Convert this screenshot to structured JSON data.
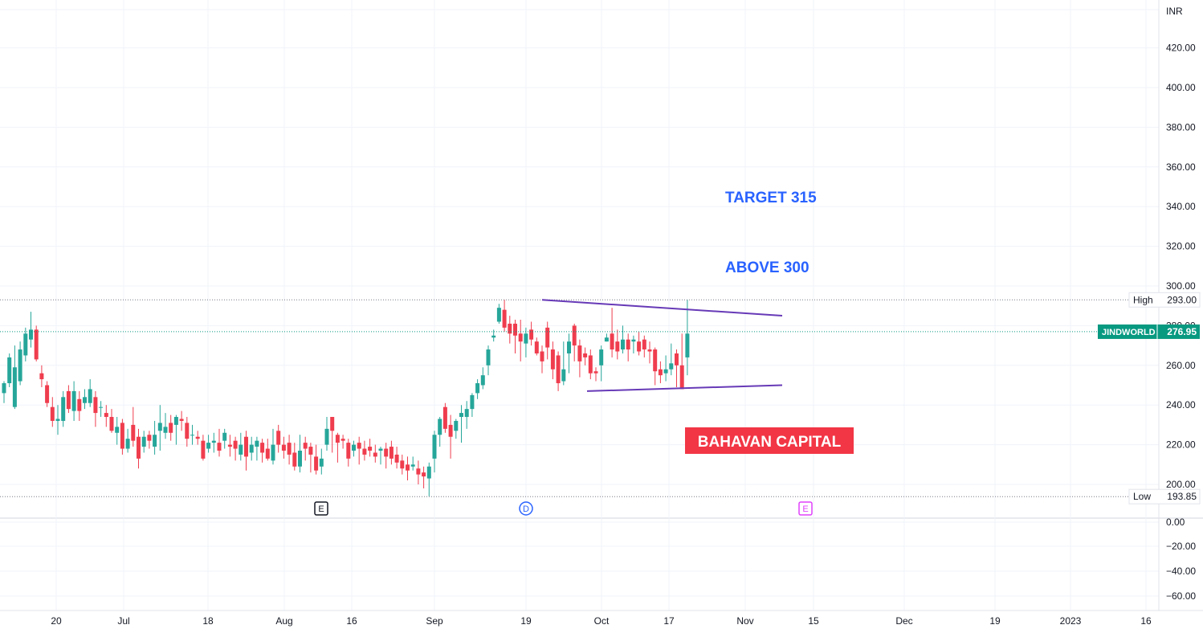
{
  "chart_data": {
    "type": "candlestick",
    "symbol": "JINDWORLD",
    "currency": "INR",
    "last_price": "276.95",
    "high": {
      "label": "High",
      "value": "293.00"
    },
    "low": {
      "label": "Low",
      "value": "193.85"
    },
    "price_ticks": [
      "420.00",
      "400.00",
      "380.00",
      "360.00",
      "340.00",
      "320.00",
      "300.00",
      "280.00",
      "260.00",
      "240.00",
      "220.00",
      "200.00"
    ],
    "volume_ticks": [
      "0.00",
      "−20.00",
      "−40.00",
      "−60.00"
    ],
    "x_tick_labels": [
      "20",
      "Jul",
      "18",
      "Aug",
      "16",
      "Sep",
      "19",
      "Oct",
      "17",
      "Nov",
      "15",
      "Dec",
      "19",
      "2023",
      "16"
    ],
    "colors": {
      "up": "#26a69a",
      "down": "#ef3d4e",
      "trendline": "#673ab7",
      "target_text": "#2962ff",
      "watermark_bg": "#f23645",
      "symbol_tag": "#089981"
    },
    "annotations": [
      {
        "id": "target",
        "text": "TARGET 315"
      },
      {
        "id": "above",
        "text": "ABOVE 300"
      },
      {
        "id": "watermark",
        "text": "BAHAVAN CAPITAL"
      }
    ],
    "event_markers": [
      {
        "id": "earnings-1",
        "text": "E"
      },
      {
        "id": "dividend",
        "text": "D"
      },
      {
        "id": "earnings-2",
        "text": "E"
      }
    ],
    "trendlines": [
      {
        "name": "upper",
        "from": [
          293,
          22
        ],
        "to": [
          285,
          43
        ]
      },
      {
        "name": "lower",
        "from": [
          247,
          26
        ],
        "to": [
          250,
          43
        ]
      }
    ],
    "candles": [
      [
        246,
        251,
        241,
        252
      ],
      [
        251,
        264,
        249,
        266
      ],
      [
        239,
        259,
        238,
        270
      ],
      [
        252,
        268,
        250,
        272
      ],
      [
        265,
        276,
        262,
        279
      ],
      [
        273,
        278,
        269,
        287
      ],
      [
        278,
        263,
        262,
        280
      ],
      [
        256,
        253,
        249,
        260
      ],
      [
        250,
        241,
        239,
        252
      ],
      [
        239,
        232,
        229,
        244
      ],
      [
        232,
        233,
        225,
        240
      ],
      [
        232,
        244,
        229,
        247
      ],
      [
        247,
        238,
        236,
        250
      ],
      [
        237,
        247,
        232,
        252
      ],
      [
        243,
        237,
        232,
        247
      ],
      [
        241,
        244,
        238,
        248
      ],
      [
        241,
        248,
        239,
        253
      ],
      [
        244,
        236,
        229,
        247
      ],
      [
        239,
        239,
        234,
        242
      ],
      [
        236,
        234,
        229,
        240
      ],
      [
        234,
        227,
        226,
        238
      ],
      [
        226,
        229,
        220,
        234
      ],
      [
        231,
        218,
        215,
        233
      ],
      [
        218,
        223,
        216,
        228
      ],
      [
        230,
        222,
        219,
        239
      ],
      [
        224,
        213,
        208,
        228
      ],
      [
        219,
        224,
        216,
        227
      ],
      [
        225,
        222,
        218,
        227
      ],
      [
        219,
        225,
        215,
        232
      ],
      [
        227,
        231,
        217,
        240
      ],
      [
        226,
        229,
        223,
        236
      ],
      [
        231,
        226,
        222,
        235
      ],
      [
        230,
        234,
        220,
        235
      ],
      [
        233,
        232,
        227,
        237
      ],
      [
        231,
        223,
        219,
        234
      ],
      [
        225,
        225,
        220,
        230
      ],
      [
        224,
        223,
        220,
        227
      ],
      [
        222,
        213,
        212,
        225
      ],
      [
        218,
        221,
        216,
        225
      ],
      [
        221,
        222,
        216,
        226
      ],
      [
        221,
        217,
        214,
        228
      ],
      [
        222,
        226,
        218,
        228
      ],
      [
        220,
        219,
        214,
        225
      ],
      [
        222,
        218,
        212,
        224
      ],
      [
        215,
        220,
        212,
        226
      ],
      [
        224,
        214,
        207,
        227
      ],
      [
        216,
        220,
        212,
        224
      ],
      [
        219,
        222,
        212,
        224
      ],
      [
        221,
        216,
        211,
        223
      ],
      [
        218,
        213,
        212,
        223
      ],
      [
        212,
        220,
        210,
        228
      ],
      [
        227,
        220,
        216,
        230
      ],
      [
        220,
        217,
        213,
        224
      ],
      [
        221,
        215,
        210,
        225
      ],
      [
        216,
        209,
        207,
        221
      ],
      [
        209,
        217,
        206,
        225
      ],
      [
        221,
        218,
        212,
        224
      ],
      [
        219,
        215,
        206,
        221
      ],
      [
        214,
        207,
        205,
        220
      ],
      [
        209,
        213,
        205,
        218
      ],
      [
        220,
        228,
        217,
        234
      ],
      [
        234,
        227,
        216,
        234
      ],
      [
        225,
        221,
        211,
        226
      ],
      [
        223,
        222,
        218,
        225
      ],
      [
        221,
        213,
        209,
        223
      ],
      [
        217,
        220,
        214,
        222
      ],
      [
        221,
        218,
        210,
        224
      ],
      [
        218,
        215,
        212,
        222
      ],
      [
        219,
        217,
        214,
        223
      ],
      [
        216,
        214,
        211,
        220
      ],
      [
        217,
        218,
        210,
        219
      ],
      [
        218,
        214,
        208,
        221
      ],
      [
        219,
        213,
        210,
        222
      ],
      [
        215,
        211,
        208,
        219
      ],
      [
        212,
        208,
        205,
        215
      ],
      [
        210,
        207,
        202,
        214
      ],
      [
        209,
        210,
        207,
        214
      ],
      [
        208,
        205,
        200,
        212
      ],
      [
        206,
        204,
        198,
        209
      ],
      [
        203,
        209,
        194,
        211
      ],
      [
        213,
        225,
        206,
        227
      ],
      [
        225,
        233,
        219,
        234
      ],
      [
        239,
        228,
        226,
        241
      ],
      [
        230,
        224,
        213,
        235
      ],
      [
        227,
        232,
        223,
        233
      ],
      [
        234,
        236,
        221,
        240
      ],
      [
        234,
        238,
        228,
        242
      ],
      [
        238,
        245,
        234,
        246
      ],
      [
        246,
        251,
        243,
        253
      ],
      [
        250,
        255,
        248,
        259
      ],
      [
        260,
        268,
        255,
        270
      ],
      [
        274,
        275,
        272,
        278
      ],
      [
        282,
        289,
        281,
        291
      ],
      [
        288,
        279,
        277,
        293
      ],
      [
        281,
        276,
        271,
        285
      ],
      [
        281,
        275,
        266,
        283
      ],
      [
        276,
        272,
        262,
        283
      ],
      [
        271,
        276,
        264,
        279
      ],
      [
        278,
        273,
        270,
        282
      ],
      [
        272,
        266,
        265,
        274
      ],
      [
        267,
        262,
        256,
        270
      ],
      [
        279,
        269,
        263,
        282
      ],
      [
        268,
        258,
        253,
        272
      ],
      [
        265,
        251,
        247,
        267
      ],
      [
        252,
        258,
        250,
        272
      ],
      [
        266,
        272,
        256,
        276
      ],
      [
        280,
        270,
        262,
        281
      ],
      [
        270,
        262,
        254,
        273
      ],
      [
        266,
        264,
        260,
        269
      ],
      [
        265,
        256,
        253,
        268
      ],
      [
        257,
        256,
        252,
        259
      ],
      [
        260,
        268,
        252,
        270
      ],
      [
        272,
        274,
        272,
        276
      ],
      [
        276,
        268,
        264,
        289
      ],
      [
        272,
        267,
        263,
        278
      ],
      [
        268,
        273,
        266,
        280
      ],
      [
        273,
        268,
        262,
        276
      ],
      [
        272,
        273,
        266,
        275
      ],
      [
        272,
        267,
        265,
        277
      ],
      [
        273,
        268,
        264,
        275
      ],
      [
        268,
        267,
        261,
        272
      ],
      [
        268,
        257,
        250,
        269
      ],
      [
        258,
        255,
        251,
        262
      ],
      [
        256,
        258,
        252,
        265
      ],
      [
        258,
        261,
        255,
        271
      ],
      [
        266,
        260,
        249,
        268
      ],
      [
        260,
        248,
        248,
        276
      ],
      [
        264,
        276,
        255,
        293
      ]
    ]
  }
}
